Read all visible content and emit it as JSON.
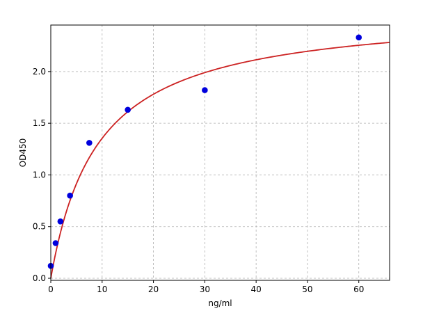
{
  "chart_data": {
    "type": "scatter",
    "title": "",
    "xlabel": "ng/ml",
    "ylabel": "OD450",
    "xlim": [
      0,
      66
    ],
    "ylim": [
      -0.02,
      2.45
    ],
    "xticks": [
      0,
      10,
      20,
      30,
      40,
      50,
      60
    ],
    "yticks": [
      0.0,
      0.5,
      1.0,
      1.5,
      2.0
    ],
    "xtick_labels": [
      "0",
      "10",
      "20",
      "30",
      "40",
      "50",
      "60"
    ],
    "ytick_labels": [
      "0.0",
      "0.5",
      "1.0",
      "1.5",
      "2.0"
    ],
    "grid": true,
    "points": {
      "x": [
        0,
        0.94,
        1.88,
        3.75,
        7.5,
        15,
        30,
        60
      ],
      "y": [
        0.12,
        0.34,
        0.55,
        0.8,
        1.31,
        1.63,
        1.82,
        2.33
      ],
      "color": "#0000dd"
    },
    "fit_curve": {
      "type": "line",
      "model": "saturation",
      "vmax": 2.6,
      "k": 9.2,
      "x_start": 0,
      "x_end": 66,
      "color": "#cc2222"
    }
  }
}
